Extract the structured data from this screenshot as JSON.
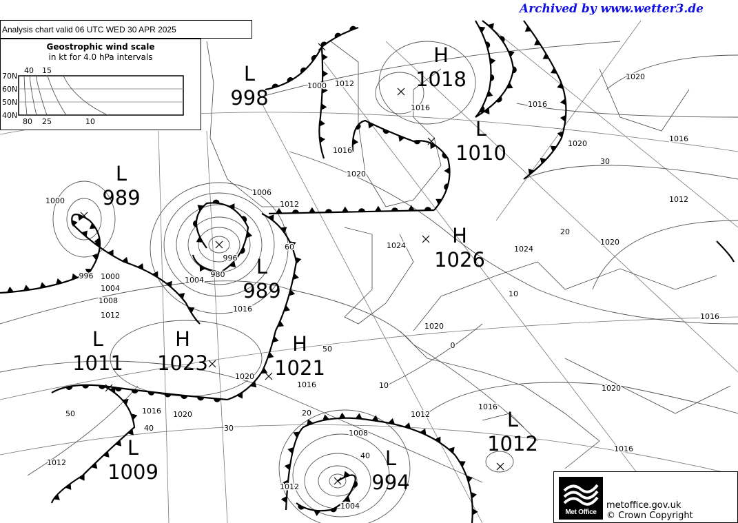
{
  "archived_banner": "Archived by www.wetter3.de",
  "chart_title": "Analysis chart  valid 06 UTC WED 30  APR 2025",
  "wind_scale": {
    "title": "Geostrophic wind scale",
    "subtitle": "in kt for 4.0 hPa intervals",
    "latitudes": [
      "70N",
      "60N",
      "50N",
      "40N"
    ],
    "top_labels": [
      "40",
      "15"
    ],
    "bottom_labels": [
      "80",
      "25",
      "10"
    ]
  },
  "pressure_systems": [
    {
      "type": "L",
      "value": "998"
    },
    {
      "type": "H",
      "value": "1018"
    },
    {
      "type": "L",
      "value": "1010"
    },
    {
      "type": "L",
      "value": "989"
    },
    {
      "type": "L",
      "value": "989"
    },
    {
      "type": "H",
      "value": "1026"
    },
    {
      "type": "L",
      "value": "1011"
    },
    {
      "type": "H",
      "value": "1023"
    },
    {
      "type": "H",
      "value": "1021"
    },
    {
      "type": "L",
      "value": "1012"
    },
    {
      "type": "L",
      "value": "1009"
    },
    {
      "type": "L",
      "value": "994"
    }
  ],
  "isobar_labels": [
    "1000",
    "1012",
    "1016",
    "1016",
    "1020",
    "1016",
    "1020",
    "1020",
    "30",
    "1016",
    "1012",
    "20",
    "1020",
    "1024",
    "10",
    "1016",
    "1006",
    "1012",
    "60",
    "996",
    "1004",
    "980",
    "1016",
    "1024",
    "1020",
    "0",
    "50",
    "1000",
    "996",
    "1000",
    "1004",
    "1008",
    "1012",
    "1020",
    "1016",
    "10",
    "20",
    "1012",
    "1016",
    "1020",
    "1016",
    "1008",
    "40",
    "1016",
    "1020",
    "40",
    "30",
    "50",
    "1012",
    "1012",
    "1004"
  ],
  "footer": {
    "logo_text": "Met Office",
    "site": "metoffice.gov.uk",
    "copyright": "© Crown Copyright"
  },
  "colors": {
    "banner": "#1010e0",
    "lines": "#000000",
    "isobars": "#555555"
  }
}
